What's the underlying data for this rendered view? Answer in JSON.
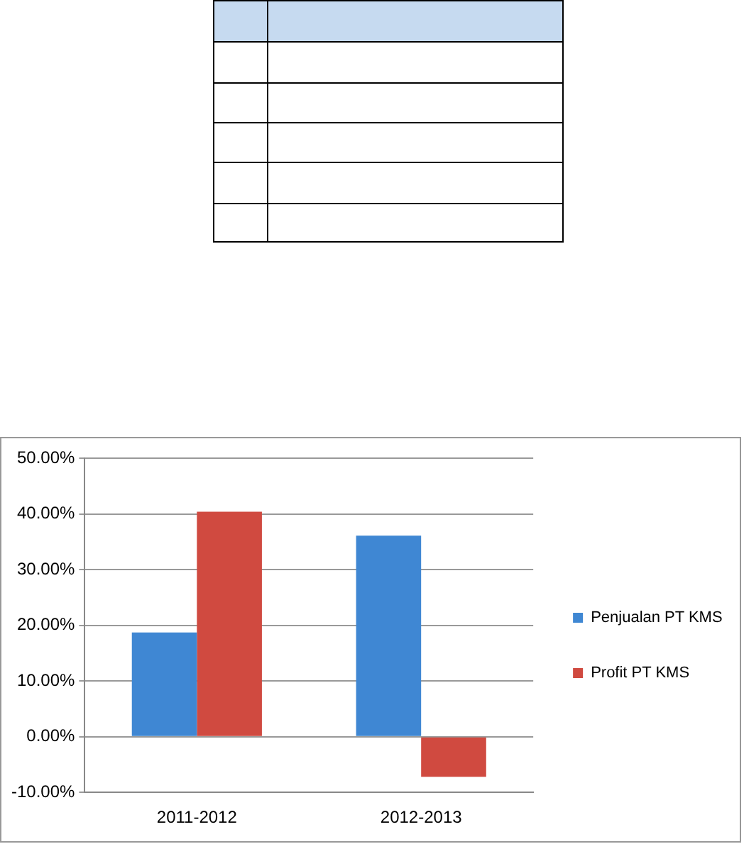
{
  "chart_data": {
    "type": "bar",
    "categories": [
      "2011-2012",
      "2012-2013"
    ],
    "series": [
      {
        "name": "Penjualan PT KMS",
        "color": "#3f87d3",
        "values": [
          18.7,
          36.1
        ]
      },
      {
        "name": "Profit PT KMS",
        "color": "#d04a40",
        "values": [
          40.4,
          -7.2
        ]
      }
    ],
    "ylim": [
      -10,
      50
    ],
    "yticks": [
      {
        "value": -10,
        "label": "-10.00%"
      },
      {
        "value": 0,
        "label": "0.00%"
      },
      {
        "value": 10,
        "label": "10.00%"
      },
      {
        "value": 20,
        "label": "20.00%"
      },
      {
        "value": 30,
        "label": "30.00%"
      },
      {
        "value": 40,
        "label": "40.00%"
      },
      {
        "value": 50,
        "label": "50.00%"
      }
    ],
    "grid": "y",
    "legend": "right"
  }
}
